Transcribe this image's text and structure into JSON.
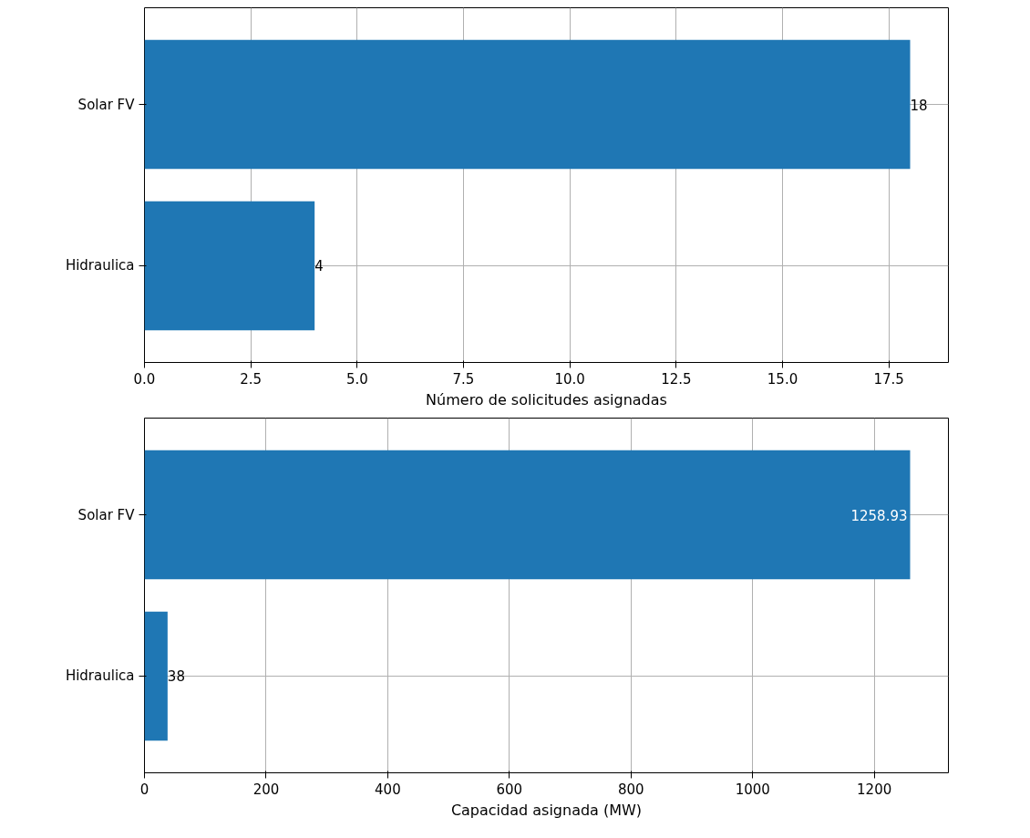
{
  "chart_data": [
    {
      "type": "bar",
      "orientation": "horizontal",
      "categories": [
        "Solar FV",
        "Hidraulica"
      ],
      "values": [
        18,
        4
      ],
      "color": "#1f77b4",
      "xlabel": "Número de solicitudes asignadas",
      "xlim": [
        0,
        18.9
      ],
      "xticks": [
        {
          "value": 0,
          "label": "0.0"
        },
        {
          "value": 2.5,
          "label": "2.5"
        },
        {
          "value": 5,
          "label": "5.0"
        },
        {
          "value": 7.5,
          "label": "7.5"
        },
        {
          "value": 10,
          "label": "10.0"
        },
        {
          "value": 12.5,
          "label": "12.5"
        },
        {
          "value": 15,
          "label": "15.0"
        },
        {
          "value": 17.5,
          "label": "17.5"
        }
      ],
      "grid": true,
      "data_labels": true
    },
    {
      "type": "bar",
      "orientation": "horizontal",
      "categories": [
        "Solar FV",
        "Hidraulica"
      ],
      "values": [
        1258.93,
        38
      ],
      "color": "#1f77b4",
      "xlabel": "Capacidad asignada (MW)",
      "xlim": [
        0,
        1321.9
      ],
      "xticks": [
        0,
        200,
        400,
        600,
        800,
        1000,
        1200
      ],
      "grid": true,
      "data_labels": true
    }
  ]
}
